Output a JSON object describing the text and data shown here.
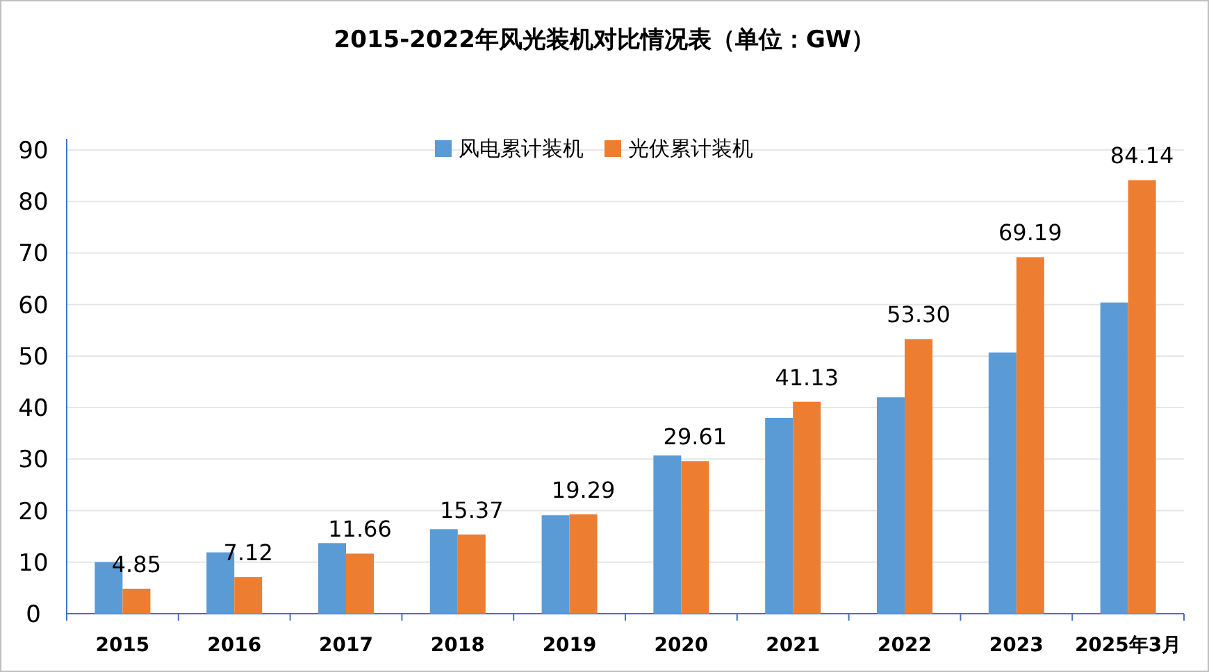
{
  "chart_data": {
    "type": "bar",
    "title": "2015-2022年风光装机对比情况表（单位：GW）",
    "categories": [
      "2015",
      "2016",
      "2017",
      "2018",
      "2019",
      "2020",
      "2021",
      "2022",
      "2023",
      "2025年3月"
    ],
    "series": [
      {
        "name": "风电累计装机",
        "color": "#5b9bd5",
        "values": [
          10.0,
          11.9,
          13.7,
          16.4,
          19.1,
          30.7,
          38.0,
          42.0,
          50.7,
          60.4
        ]
      },
      {
        "name": "光伏累计装机",
        "color": "#ed7d31",
        "values": [
          4.85,
          7.12,
          11.66,
          15.37,
          19.29,
          29.61,
          41.13,
          53.3,
          69.19,
          84.14
        ],
        "value_labels": [
          "4.85",
          "7.12",
          "11.66",
          "15.37",
          "19.29",
          "29.61",
          "41.13",
          "53.30",
          "69.19",
          "84.14"
        ]
      }
    ],
    "ylim": [
      0,
      90
    ],
    "yticks": [
      0,
      10,
      20,
      30,
      40,
      50,
      60,
      70,
      80,
      90
    ],
    "grid": "y",
    "legend": "top"
  }
}
